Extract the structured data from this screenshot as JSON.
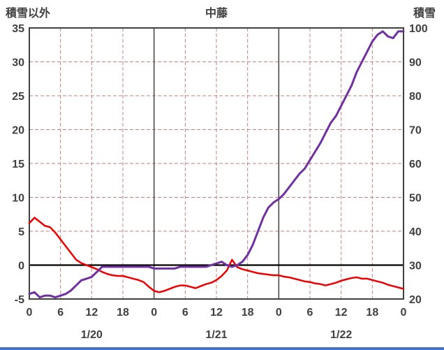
{
  "header": {
    "left_axis_title": "積雪以外",
    "title": "中藤",
    "right_axis_title": "積雪"
  },
  "footer": {
    "bar_color": "#4472c4"
  },
  "chart_data": {
    "type": "line",
    "title": "中藤",
    "grid_color": "#c08080",
    "axis_color": "#404040",
    "zero_line_color": "#000000",
    "x_max": 72,
    "x_tick_hours": [
      0,
      6,
      12,
      18,
      24,
      30,
      36,
      42,
      48,
      54,
      60,
      66,
      72
    ],
    "x_tick_labels": [
      "0",
      "6",
      "12",
      "18",
      "0",
      "6",
      "12",
      "18",
      "0",
      "6",
      "12",
      "18",
      "0"
    ],
    "day_labels": [
      {
        "hour": 12,
        "label": "1/20"
      },
      {
        "hour": 36,
        "label": "1/21"
      },
      {
        "hour": 60,
        "label": "1/22"
      }
    ],
    "left_axis": {
      "min": -5,
      "max": 35,
      "step": 5,
      "tick_values": [
        35,
        30,
        25,
        20,
        15,
        10,
        5,
        0,
        -5
      ],
      "tick_labels": [
        "35",
        "30",
        "25",
        "20",
        "15",
        "10",
        "5",
        "0",
        "-5"
      ]
    },
    "right_axis": {
      "min": 20,
      "max": 100,
      "step": 10,
      "tick_values": [
        100,
        90,
        80,
        70,
        60,
        50,
        40,
        30,
        20
      ],
      "tick_labels": [
        "100",
        "90",
        "80",
        "70",
        "60",
        "50",
        "40",
        "30",
        "20"
      ]
    },
    "series": [
      {
        "name": "積雪以外",
        "axis": "left",
        "color": "#ee0000",
        "width": 2.5,
        "values": [
          6.2,
          7,
          6.4,
          5.8,
          5.6,
          4.8,
          3.8,
          2.8,
          1.8,
          0.8,
          0.3,
          0,
          -0.3,
          -0.6,
          -1,
          -1.3,
          -1.5,
          -1.6,
          -1.6,
          -1.8,
          -2,
          -2.2,
          -2.5,
          -3.2,
          -3.8,
          -4,
          -3.8,
          -3.5,
          -3.2,
          -3,
          -3,
          -3.2,
          -3.4,
          -3.1,
          -2.8,
          -2.6,
          -2.2,
          -1.6,
          -0.8,
          0.8,
          -0.3,
          -0.6,
          -0.8,
          -1,
          -1.2,
          -1.3,
          -1.4,
          -1.5,
          -1.5,
          -1.7,
          -1.8,
          -2,
          -2.2,
          -2.4,
          -2.5,
          -2.7,
          -2.8,
          -3,
          -2.8,
          -2.6,
          -2.3,
          -2.1,
          -1.9,
          -1.8,
          -2,
          -2,
          -2.2,
          -2.4,
          -2.6,
          -2.9,
          -3.1,
          -3.3,
          -3.5
        ]
      },
      {
        "name": "積雪",
        "axis": "right",
        "color": "#7030a0",
        "width": 3,
        "values": [
          21.5,
          22,
          20.5,
          21,
          21,
          20.5,
          21,
          21.5,
          22.5,
          24,
          25.5,
          26,
          26.5,
          28,
          29.5,
          29.5,
          29.5,
          29.5,
          29.5,
          29.5,
          29.5,
          29.5,
          29.5,
          29.5,
          29,
          29,
          29,
          29,
          29,
          29.5,
          29.5,
          29.5,
          29.5,
          29.5,
          29.5,
          30,
          30.5,
          31,
          30,
          29.5,
          30,
          31,
          33,
          36,
          40,
          44,
          47,
          48.5,
          49.5,
          51,
          53,
          55,
          57,
          58.5,
          61,
          63.5,
          66,
          69,
          72,
          74,
          77,
          80,
          83,
          87,
          90,
          93,
          96,
          98,
          99,
          97.5,
          97,
          99,
          99
        ]
      }
    ]
  }
}
